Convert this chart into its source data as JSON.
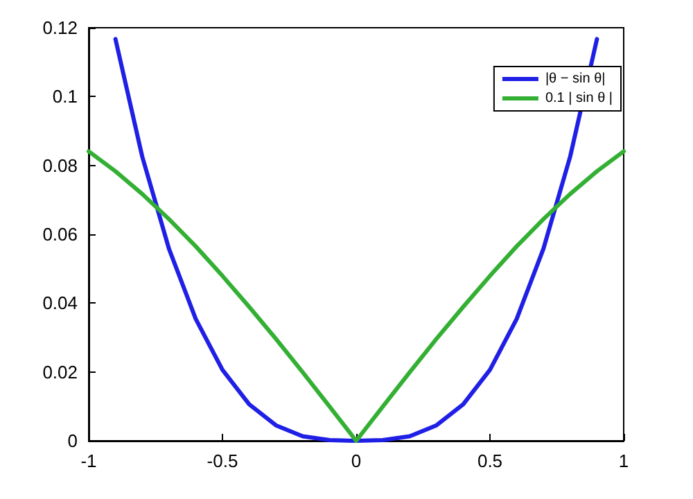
{
  "chart_data": {
    "type": "line",
    "legend": "top right",
    "grid": false,
    "marker": "none",
    "line_style": "solid",
    "xlim": [
      -1,
      1
    ],
    "xticks": [
      -1,
      -0.5,
      0,
      0.5,
      1
    ],
    "ylim": [
      0,
      0.12
    ],
    "yticks": [
      0,
      0.02,
      0.04,
      0.06,
      0.08,
      0.1,
      0.12
    ],
    "series": [
      {
        "name": "|θ − sin θ|",
        "color": "#1f1fe6",
        "x": [
          -0.9,
          -0.8,
          -0.7,
          -0.6,
          -0.5,
          -0.4,
          -0.3,
          -0.2,
          -0.1,
          0,
          0.1,
          0.2,
          0.3,
          0.4,
          0.5,
          0.6,
          0.7,
          0.8,
          0.9
        ],
        "values": [
          0.1167,
          0.0826,
          0.0558,
          0.0354,
          0.0206,
          0.0106,
          0.0045,
          0.0013,
          0.0002,
          0,
          0.0002,
          0.0013,
          0.0045,
          0.0106,
          0.0206,
          0.0354,
          0.0558,
          0.0826,
          0.1167
        ]
      },
      {
        "name": "0.1 | sin θ |",
        "color": "#33b033",
        "x": [
          -1,
          -0.9,
          -0.8,
          -0.7,
          -0.6,
          -0.5,
          -0.4,
          -0.3,
          -0.2,
          -0.1,
          0,
          0.1,
          0.2,
          0.3,
          0.4,
          0.5,
          0.6,
          0.7,
          0.8,
          0.9,
          1
        ],
        "values": [
          0.0841,
          0.0783,
          0.0717,
          0.0644,
          0.0565,
          0.0479,
          0.0389,
          0.0296,
          0.0199,
          0.01,
          0,
          0.01,
          0.0199,
          0.0296,
          0.0389,
          0.0479,
          0.0565,
          0.0644,
          0.0717,
          0.0783,
          0.0841
        ]
      }
    ]
  }
}
